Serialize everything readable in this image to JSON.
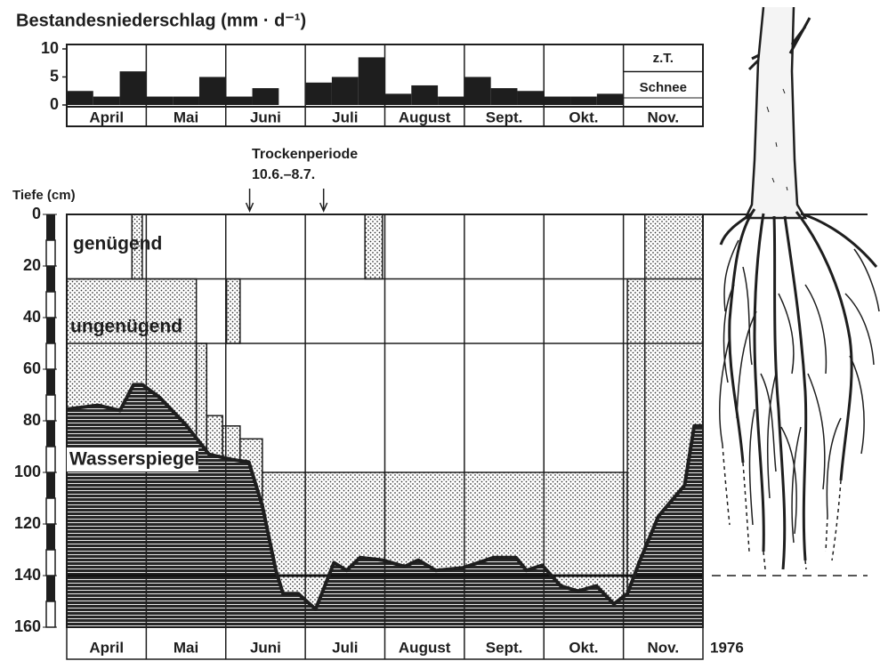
{
  "chart_data": [
    {
      "type": "bar",
      "title": "Bestandesniederschlag (mm · d⁻¹)",
      "categories": [
        null,
        "April",
        null,
        null,
        "Mai",
        null,
        null,
        "Juni",
        null,
        null,
        "Juli",
        null,
        null,
        "August",
        null,
        null,
        "Sept.",
        null,
        null,
        "Okt.",
        null,
        null,
        "Nov.",
        null
      ],
      "values": [
        2.5,
        1.5,
        6,
        1.5,
        1.5,
        5,
        1.5,
        3,
        0,
        4,
        5,
        8.5,
        2,
        3.5,
        1.5,
        5,
        3,
        2.5,
        1.5,
        1.5,
        2,
        null,
        null,
        null
      ],
      "color": "#1e1e1e",
      "ylim": [
        0,
        10
      ],
      "yticks": [
        0,
        5,
        10
      ],
      "annotations": [
        "z.T.",
        "Schnee"
      ]
    },
    {
      "type": "area",
      "y_label": "Tiefe (cm)",
      "categories": [
        "April",
        "Mai",
        "Juni",
        "Juli",
        "August",
        "Sept.",
        "Okt.",
        "Nov."
      ],
      "year_label": "1976",
      "xlim": [
        0,
        8
      ],
      "ylim": [
        0,
        160
      ],
      "yticks": [
        0,
        20,
        40,
        60,
        80,
        100,
        120,
        140,
        160
      ],
      "zone_labels": [
        "genügend",
        "ungenügend"
      ],
      "levels": [
        25,
        50
      ],
      "reference_depth": 140,
      "dry_zone": [
        {
          "x": [
            0,
            1.63
          ],
          "top": 25
        },
        {
          "x": [
            1.63,
            1.76
          ],
          "top": 50
        },
        {
          "x": [
            1.76,
            1.96
          ],
          "top": 78
        },
        {
          "x": [
            1.96,
            2.18
          ],
          "top": 82
        },
        {
          "x": [
            2.18,
            2.46
          ],
          "top": 87
        },
        {
          "x": [
            2.46,
            7.05
          ],
          "top": 100
        },
        {
          "x": [
            7.05,
            7.27
          ],
          "top": 25
        },
        {
          "x": [
            7.27,
            8
          ],
          "top": 0
        }
      ],
      "dry_patches": [
        {
          "x": [
            0.82,
            0.95
          ],
          "y": [
            0,
            25
          ]
        },
        {
          "x": [
            2.01,
            2.18
          ],
          "y": [
            25,
            50
          ]
        },
        {
          "x": [
            3.75,
            3.97
          ],
          "y": [
            0,
            25
          ]
        }
      ],
      "series": [
        {
          "name": "Wasserspiegel",
          "color": "#1e1e1e",
          "x": [
            0,
            0.39,
            0.67,
            0.84,
            0.95,
            1.17,
            1.51,
            1.79,
            2.07,
            2.29,
            2.46,
            2.63,
            2.72,
            2.91,
            3.13,
            3.36,
            3.52,
            3.69,
            3.97,
            4.25,
            4.42,
            4.64,
            4.98,
            5.37,
            5.65,
            5.78,
            5.98,
            6.21,
            6.43,
            6.66,
            6.88,
            7.05,
            7.21,
            7.44,
            7.77,
            7.89,
            8
          ],
          "values": [
            75.5,
            74,
            76,
            66,
            66,
            71,
            82,
            93,
            95,
            96,
            113,
            138,
            147,
            147,
            153,
            135,
            138,
            133,
            134,
            136.5,
            134,
            138,
            137,
            133,
            133,
            138,
            136,
            144,
            146,
            144,
            151,
            147,
            134,
            117,
            105,
            82,
            82
          ]
        }
      ],
      "annotation": {
        "text": "Trockenperiode",
        "dates": "10.6.–8.7.",
        "x": [
          2.3,
          3.23
        ]
      }
    }
  ]
}
